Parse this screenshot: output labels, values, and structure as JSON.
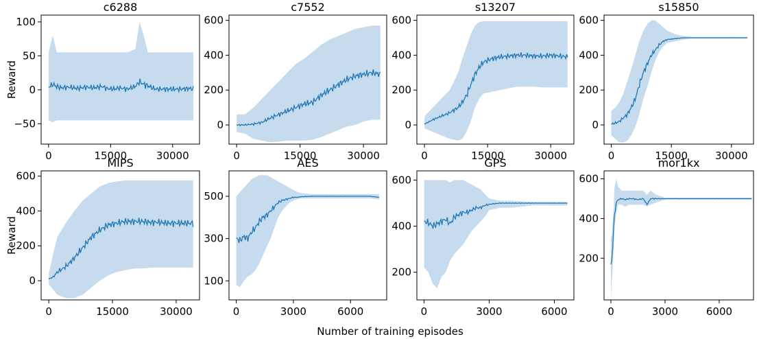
{
  "figure": {
    "xlabel": "Number of training episodes",
    "band_color": "#c6dcee",
    "line_color": "#1f77b4"
  },
  "chart_data": [
    {
      "type": "line",
      "title": "c6288",
      "ylabel": "Reward",
      "xlim": [
        -1800,
        36500
      ],
      "ylim": [
        -80,
        110
      ],
      "xticks": [
        0,
        15000,
        30000
      ],
      "yticks": [
        -50,
        0,
        50,
        100
      ],
      "tick_labels_y": [
        "−50",
        "0",
        "50",
        "100"
      ],
      "series": [
        {
          "x": [
            0,
            1000,
            2000,
            3000,
            5000,
            7000,
            9000,
            11000,
            13000,
            14000,
            16000,
            17000,
            19000,
            21000,
            22000,
            23000,
            24000,
            25000,
            26000,
            28000,
            30000,
            32000,
            34000,
            35000
          ],
          "mean": [
            4,
            8,
            5,
            3,
            4,
            2,
            4,
            3,
            5,
            2,
            1,
            3,
            1,
            5,
            12,
            8,
            6,
            3,
            1,
            1,
            1,
            1,
            2,
            1
          ],
          "low": [
            -45,
            -48,
            -45,
            -45,
            -45,
            -45,
            -45,
            -45,
            -45,
            -45,
            -45,
            -45,
            -45,
            -45,
            -45,
            -45,
            -45,
            -45,
            -45,
            -45,
            -45,
            -45,
            -45,
            -45
          ],
          "high": [
            55,
            80,
            55,
            55,
            55,
            55,
            55,
            55,
            55,
            55,
            55,
            55,
            55,
            60,
            100,
            80,
            55,
            55,
            55,
            55,
            55,
            55,
            55,
            55
          ]
        }
      ]
    },
    {
      "type": "line",
      "title": "c7552",
      "ylabel": "",
      "xlim": [
        -1800,
        35500
      ],
      "ylim": [
        -110,
        630
      ],
      "xticks": [
        0,
        15000,
        30000
      ],
      "yticks": [
        0,
        200,
        400,
        600
      ],
      "tick_labels_y": [
        "0",
        "200",
        "400",
        "600"
      ],
      "series": [
        {
          "x": [
            0,
            2000,
            4000,
            6000,
            8000,
            10000,
            12000,
            14000,
            16000,
            18000,
            20000,
            22000,
            24000,
            26000,
            28000,
            30000,
            32000,
            34000
          ],
          "mean": [
            0,
            0,
            5,
            15,
            40,
            60,
            80,
            100,
            120,
            130,
            170,
            200,
            230,
            260,
            280,
            290,
            300,
            290
          ],
          "low": [
            -40,
            -50,
            -80,
            -90,
            -100,
            -95,
            -90,
            -90,
            -90,
            -85,
            -70,
            -50,
            -30,
            -10,
            0,
            20,
            30,
            30
          ],
          "high": [
            60,
            60,
            100,
            150,
            200,
            250,
            300,
            350,
            380,
            420,
            460,
            490,
            510,
            530,
            550,
            560,
            570,
            570
          ]
        }
      ]
    },
    {
      "type": "line",
      "title": "s13207",
      "ylabel": "",
      "xlim": [
        -1800,
        35500
      ],
      "ylim": [
        -110,
        630
      ],
      "xticks": [
        0,
        15000,
        30000
      ],
      "yticks": [
        0,
        200,
        400,
        600
      ],
      "tick_labels_y": [
        "0",
        "200",
        "400",
        "600"
      ],
      "series": [
        {
          "x": [
            0,
            2000,
            4000,
            6000,
            8000,
            9000,
            10000,
            11000,
            12000,
            13000,
            14000,
            16000,
            18000,
            20000,
            22000,
            24000,
            26000,
            28000,
            30000,
            32000,
            34000
          ],
          "mean": [
            5,
            30,
            50,
            70,
            100,
            130,
            170,
            230,
            290,
            330,
            360,
            380,
            390,
            395,
            400,
            400,
            395,
            395,
            400,
            395,
            390
          ],
          "low": [
            -20,
            -40,
            -60,
            -80,
            -90,
            -80,
            -40,
            20,
            100,
            150,
            180,
            190,
            200,
            210,
            220,
            220,
            220,
            215,
            215,
            215,
            215
          ],
          "high": [
            50,
            100,
            150,
            200,
            300,
            380,
            450,
            520,
            570,
            590,
            595,
            595,
            595,
            595,
            595,
            595,
            595,
            595,
            595,
            595,
            595
          ]
        }
      ]
    },
    {
      "type": "line",
      "title": "s15850",
      "ylabel": "",
      "xlim": [
        -1800,
        35500
      ],
      "ylim": [
        -110,
        630
      ],
      "xticks": [
        0,
        15000,
        30000
      ],
      "yticks": [
        0,
        200,
        400,
        600
      ],
      "tick_labels_y": [
        "0",
        "200",
        "400",
        "600"
      ],
      "series": [
        {
          "x": [
            0,
            1000,
            2000,
            3000,
            4000,
            5000,
            6000,
            7000,
            8000,
            9000,
            10000,
            11000,
            12000,
            13000,
            14000,
            16000,
            18000,
            20000,
            25000,
            30000,
            34000
          ],
          "mean": [
            5,
            10,
            20,
            40,
            60,
            100,
            150,
            230,
            300,
            350,
            400,
            430,
            460,
            480,
            490,
            495,
            500,
            500,
            500,
            500,
            500
          ],
          "low": [
            -60,
            -80,
            -100,
            -100,
            -90,
            -60,
            -10,
            60,
            150,
            220,
            300,
            370,
            420,
            450,
            470,
            480,
            490,
            495,
            495,
            495,
            495
          ],
          "high": [
            80,
            100,
            130,
            180,
            250,
            320,
            400,
            480,
            540,
            580,
            600,
            600,
            580,
            560,
            540,
            520,
            510,
            505,
            505,
            505,
            505
          ]
        }
      ]
    },
    {
      "type": "line",
      "title": "MIPS",
      "ylabel": "Reward",
      "xlim": [
        -1800,
        35500
      ],
      "ylim": [
        -110,
        630
      ],
      "xticks": [
        0,
        15000,
        30000
      ],
      "yticks": [
        0,
        200,
        400,
        600
      ],
      "tick_labels_y": [
        "0",
        "200",
        "400",
        "600"
      ],
      "series": [
        {
          "x": [
            0,
            1000,
            2000,
            4000,
            6000,
            8000,
            10000,
            12000,
            14000,
            16000,
            18000,
            20000,
            22000,
            24000,
            26000,
            28000,
            30000,
            32000,
            34000
          ],
          "mean": [
            10,
            20,
            50,
            80,
            130,
            190,
            250,
            290,
            320,
            330,
            340,
            340,
            340,
            335,
            335,
            330,
            330,
            330,
            330
          ],
          "low": [
            -20,
            -50,
            -80,
            -100,
            -100,
            -80,
            -40,
            0,
            30,
            50,
            60,
            70,
            70,
            75,
            75,
            75,
            75,
            75,
            75
          ],
          "high": [
            40,
            150,
            250,
            330,
            400,
            460,
            500,
            540,
            560,
            570,
            575,
            575,
            575,
            575,
            575,
            575,
            575,
            575,
            575
          ]
        }
      ]
    },
    {
      "type": "line",
      "title": "AES",
      "ylabel": "",
      "xlim": [
        -380,
        7900
      ],
      "ylim": [
        10,
        620
      ],
      "xticks": [
        0,
        3000,
        6000
      ],
      "yticks": [
        100,
        300,
        500
      ],
      "tick_labels_y": [
        "100",
        "300",
        "500"
      ],
      "series": [
        {
          "x": [
            0,
            200,
            400,
            600,
            800,
            1000,
            1200,
            1400,
            1600,
            1800,
            2000,
            2200,
            2400,
            2600,
            2800,
            3000,
            3200,
            3400,
            4000,
            5000,
            6000,
            7000,
            7500
          ],
          "mean": [
            300,
            290,
            310,
            300,
            330,
            350,
            380,
            400,
            410,
            430,
            450,
            470,
            480,
            485,
            490,
            495,
            495,
            498,
            500,
            500,
            500,
            500,
            495
          ],
          "low": [
            80,
            70,
            100,
            120,
            130,
            150,
            180,
            220,
            260,
            300,
            350,
            400,
            430,
            450,
            470,
            480,
            485,
            490,
            490,
            490,
            490,
            490,
            485
          ],
          "high": [
            500,
            520,
            540,
            560,
            580,
            590,
            600,
            600,
            600,
            590,
            580,
            570,
            560,
            550,
            540,
            530,
            520,
            515,
            510,
            510,
            510,
            510,
            510
          ]
        }
      ]
    },
    {
      "type": "line",
      "title": "GPS",
      "ylabel": "",
      "xlim": [
        -330,
        6900
      ],
      "ylim": [
        80,
        640
      ],
      "xticks": [
        0,
        3000,
        6000
      ],
      "yticks": [
        200,
        400,
        600
      ],
      "tick_labels_y": [
        "200",
        "400",
        "600"
      ],
      "series": [
        {
          "x": [
            0,
            200,
            400,
            600,
            800,
            1000,
            1200,
            1400,
            1600,
            1800,
            2000,
            2200,
            2400,
            2600,
            2800,
            3000,
            3500,
            4000,
            5000,
            6000,
            6600
          ],
          "mean": [
            420,
            415,
            400,
            410,
            420,
            430,
            410,
            440,
            450,
            460,
            460,
            470,
            480,
            480,
            490,
            495,
            500,
            500,
            500,
            500,
            500
          ],
          "low": [
            220,
            200,
            150,
            130,
            180,
            200,
            250,
            280,
            300,
            320,
            350,
            380,
            400,
            420,
            440,
            470,
            480,
            480,
            490,
            490,
            490
          ],
          "high": [
            600,
            600,
            600,
            600,
            600,
            600,
            590,
            600,
            600,
            600,
            590,
            580,
            570,
            560,
            540,
            520,
            510,
            510,
            505,
            505,
            505
          ]
        }
      ]
    },
    {
      "type": "line",
      "title": "mor1kx",
      "ylabel": "",
      "xlim": [
        -380,
        7900
      ],
      "ylim": [
        -10,
        640
      ],
      "xticks": [
        0,
        3000,
        6000
      ],
      "yticks": [
        200,
        400,
        600
      ],
      "tick_labels_y": [
        "200",
        "400",
        "600"
      ],
      "series": [
        {
          "x": [
            0,
            50,
            100,
            150,
            200,
            300,
            400,
            600,
            800,
            1000,
            1200,
            1500,
            1800,
            2000,
            2200,
            2500,
            3000,
            4000,
            5000,
            6000,
            7000,
            7800
          ],
          "mean": [
            170,
            190,
            260,
            350,
            420,
            480,
            495,
            500,
            495,
            500,
            500,
            495,
            500,
            470,
            500,
            500,
            500,
            500,
            500,
            500,
            500,
            500
          ],
          "low": [
            0,
            80,
            150,
            250,
            350,
            430,
            470,
            470,
            460,
            470,
            470,
            470,
            470,
            460,
            470,
            480,
            495,
            495,
            495,
            495,
            495,
            495
          ],
          "high": [
            300,
            320,
            380,
            450,
            560,
            600,
            560,
            540,
            540,
            540,
            540,
            540,
            540,
            520,
            540,
            520,
            505,
            505,
            505,
            505,
            505,
            505
          ]
        }
      ]
    }
  ]
}
